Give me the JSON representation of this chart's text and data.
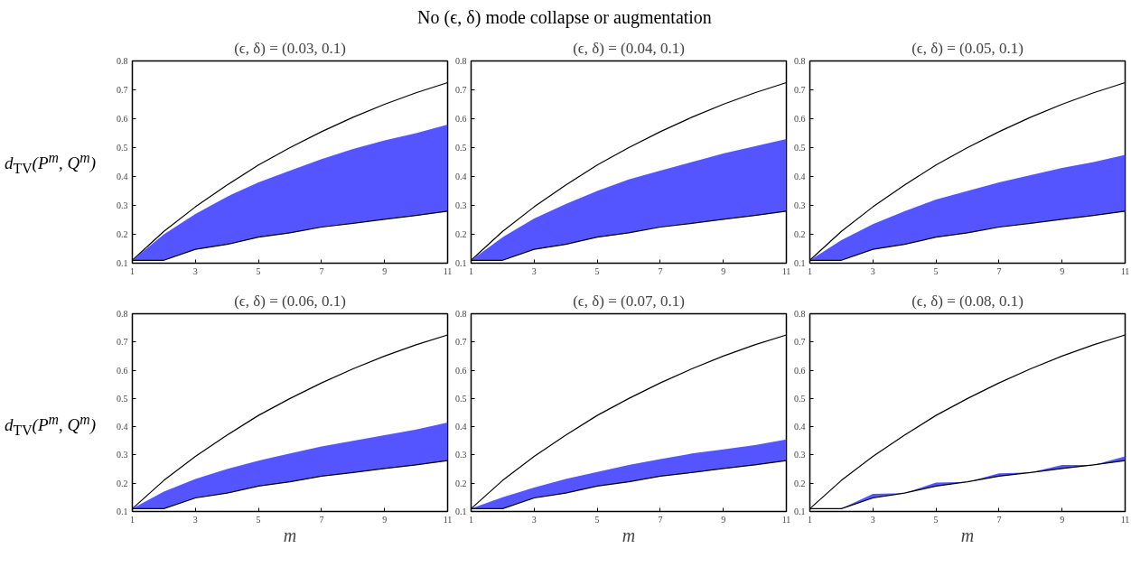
{
  "chart_data": [
    {
      "type": "line",
      "annotations": [
        "No (ϵ, δ) mode collapse or augmentation"
      ],
      "title": "(ϵ, δ) = (0.03, 0.1)",
      "ylabel": "d$_{TV}$(P$^{m}$, Q$^{m}$)",
      "x": [
        1,
        2,
        3,
        4,
        5,
        6,
        7,
        8,
        9,
        10,
        11
      ],
      "xlim": [
        1,
        11
      ],
      "ylim": [
        0.1,
        0.8
      ],
      "xticks": [
        1,
        3,
        5,
        7,
        9,
        11
      ],
      "yticks": [
        0.1,
        0.2,
        0.3,
        0.4,
        0.5,
        0.6,
        0.7,
        0.8
      ],
      "series": [
        {
          "color": "#000000",
          "values": [
            0.11,
            0.21,
            0.295,
            0.37,
            0.44,
            0.5,
            0.555,
            0.605,
            0.65,
            0.69,
            0.725
          ]
        },
        {
          "color": "#000000",
          "values": [
            0.11,
            0.11,
            0.148,
            0.165,
            0.19,
            0.205,
            0.225,
            0.238,
            0.252,
            0.265,
            0.28
          ],
          "lower": [
            0.11,
            0.11,
            0.148,
            0.165,
            0.19,
            0.205,
            0.225,
            0.238,
            0.252,
            0.265,
            0.28
          ],
          "upper": [
            0.11,
            0.2,
            0.27,
            0.33,
            0.38,
            0.42,
            0.46,
            0.495,
            0.525,
            0.55,
            0.58
          ]
        }
      ]
    },
    {
      "type": "line",
      "title": "(ϵ, δ) = (0.04, 0.1)",
      "x": [
        1,
        2,
        3,
        4,
        5,
        6,
        7,
        8,
        9,
        10,
        11
      ],
      "xlim": [
        1,
        11
      ],
      "ylim": [
        0.1,
        0.8
      ],
      "xticks": [
        1,
        3,
        5,
        7,
        9,
        11
      ],
      "yticks": [
        0.1,
        0.2,
        0.3,
        0.4,
        0.5,
        0.6,
        0.7,
        0.8
      ],
      "series": [
        {
          "color": "#000000",
          "values": [
            0.11,
            0.21,
            0.295,
            0.37,
            0.44,
            0.5,
            0.555,
            0.605,
            0.65,
            0.69,
            0.725
          ]
        },
        {
          "color": "#000000",
          "values": [
            0.11,
            0.11,
            0.148,
            0.165,
            0.19,
            0.205,
            0.225,
            0.238,
            0.252,
            0.265,
            0.28
          ],
          "lower": [
            0.11,
            0.11,
            0.148,
            0.165,
            0.19,
            0.205,
            0.225,
            0.238,
            0.252,
            0.265,
            0.28
          ],
          "upper": [
            0.11,
            0.19,
            0.255,
            0.305,
            0.35,
            0.39,
            0.42,
            0.45,
            0.48,
            0.505,
            0.53
          ]
        }
      ]
    },
    {
      "type": "line",
      "title": "(ϵ, δ) = (0.05, 0.1)",
      "x": [
        1,
        2,
        3,
        4,
        5,
        6,
        7,
        8,
        9,
        10,
        11
      ],
      "xlim": [
        1,
        11
      ],
      "ylim": [
        0.1,
        0.8
      ],
      "xticks": [
        1,
        3,
        5,
        7,
        9,
        11
      ],
      "yticks": [
        0.1,
        0.2,
        0.3,
        0.4,
        0.5,
        0.6,
        0.7,
        0.8
      ],
      "series": [
        {
          "color": "#000000",
          "values": [
            0.11,
            0.21,
            0.295,
            0.37,
            0.44,
            0.5,
            0.555,
            0.605,
            0.65,
            0.69,
            0.725
          ]
        },
        {
          "color": "#000000",
          "values": [
            0.11,
            0.11,
            0.148,
            0.165,
            0.19,
            0.205,
            0.225,
            0.238,
            0.252,
            0.265,
            0.28
          ],
          "lower": [
            0.11,
            0.11,
            0.148,
            0.165,
            0.19,
            0.205,
            0.225,
            0.238,
            0.252,
            0.265,
            0.28
          ],
          "upper": [
            0.11,
            0.18,
            0.235,
            0.28,
            0.32,
            0.35,
            0.38,
            0.405,
            0.43,
            0.45,
            0.475
          ]
        }
      ]
    },
    {
      "type": "line",
      "title": "(ϵ, δ) = (0.06, 0.1)",
      "ylabel": "d$_{TV}$(P$^{m}$, Q$^{m}$)",
      "xlabel": "m",
      "x": [
        1,
        2,
        3,
        4,
        5,
        6,
        7,
        8,
        9,
        10,
        11
      ],
      "xlim": [
        1,
        11
      ],
      "ylim": [
        0.1,
        0.8
      ],
      "xticks": [
        1,
        3,
        5,
        7,
        9,
        11
      ],
      "yticks": [
        0.1,
        0.2,
        0.3,
        0.4,
        0.5,
        0.6,
        0.7,
        0.8
      ],
      "series": [
        {
          "color": "#000000",
          "values": [
            0.11,
            0.21,
            0.295,
            0.37,
            0.44,
            0.5,
            0.555,
            0.605,
            0.65,
            0.69,
            0.725
          ]
        },
        {
          "color": "#000000",
          "values": [
            0.11,
            0.11,
            0.148,
            0.165,
            0.19,
            0.205,
            0.225,
            0.238,
            0.252,
            0.265,
            0.28
          ],
          "lower": [
            0.11,
            0.11,
            0.148,
            0.165,
            0.19,
            0.205,
            0.225,
            0.238,
            0.252,
            0.265,
            0.28
          ],
          "upper": [
            0.11,
            0.17,
            0.215,
            0.25,
            0.28,
            0.305,
            0.33,
            0.35,
            0.37,
            0.39,
            0.415
          ]
        }
      ]
    },
    {
      "type": "line",
      "title": "(ϵ, δ) = (0.07, 0.1)",
      "xlabel": "m",
      "x": [
        1,
        2,
        3,
        4,
        5,
        6,
        7,
        8,
        9,
        10,
        11
      ],
      "xlim": [
        1,
        11
      ],
      "ylim": [
        0.1,
        0.8
      ],
      "xticks": [
        1,
        3,
        5,
        7,
        9,
        11
      ],
      "yticks": [
        0.1,
        0.2,
        0.3,
        0.4,
        0.5,
        0.6,
        0.7,
        0.8
      ],
      "series": [
        {
          "color": "#000000",
          "values": [
            0.11,
            0.21,
            0.295,
            0.37,
            0.44,
            0.5,
            0.555,
            0.605,
            0.65,
            0.69,
            0.725
          ]
        },
        {
          "color": "#000000",
          "values": [
            0.11,
            0.11,
            0.148,
            0.165,
            0.19,
            0.205,
            0.225,
            0.238,
            0.252,
            0.265,
            0.28
          ],
          "lower": [
            0.11,
            0.11,
            0.148,
            0.165,
            0.19,
            0.205,
            0.225,
            0.238,
            0.252,
            0.265,
            0.28
          ],
          "upper": [
            0.11,
            0.15,
            0.185,
            0.215,
            0.24,
            0.265,
            0.285,
            0.305,
            0.32,
            0.335,
            0.355
          ]
        }
      ]
    },
    {
      "type": "line",
      "title": "(ϵ, δ) = (0.08, 0.1)",
      "xlabel": "m",
      "x": [
        1,
        2,
        3,
        4,
        5,
        6,
        7,
        8,
        9,
        10,
        11
      ],
      "xlim": [
        1,
        11
      ],
      "ylim": [
        0.1,
        0.8
      ],
      "xticks": [
        1,
        3,
        5,
        7,
        9,
        11
      ],
      "yticks": [
        0.1,
        0.2,
        0.3,
        0.4,
        0.5,
        0.6,
        0.7,
        0.8
      ],
      "series": [
        {
          "color": "#000000",
          "values": [
            0.11,
            0.21,
            0.295,
            0.37,
            0.44,
            0.5,
            0.555,
            0.605,
            0.65,
            0.69,
            0.725
          ]
        },
        {
          "color": "#000000",
          "values": [
            0.11,
            0.11,
            0.148,
            0.165,
            0.19,
            0.205,
            0.225,
            0.238,
            0.252,
            0.265,
            0.28
          ],
          "lower": [
            0.11,
            0.11,
            0.148,
            0.165,
            0.19,
            0.205,
            0.225,
            0.238,
            0.252,
            0.265,
            0.28
          ],
          "upper": [
            0.11,
            0.11,
            0.162,
            0.165,
            0.202,
            0.205,
            0.235,
            0.238,
            0.265,
            0.265,
            0.295
          ]
        }
      ]
    }
  ]
}
